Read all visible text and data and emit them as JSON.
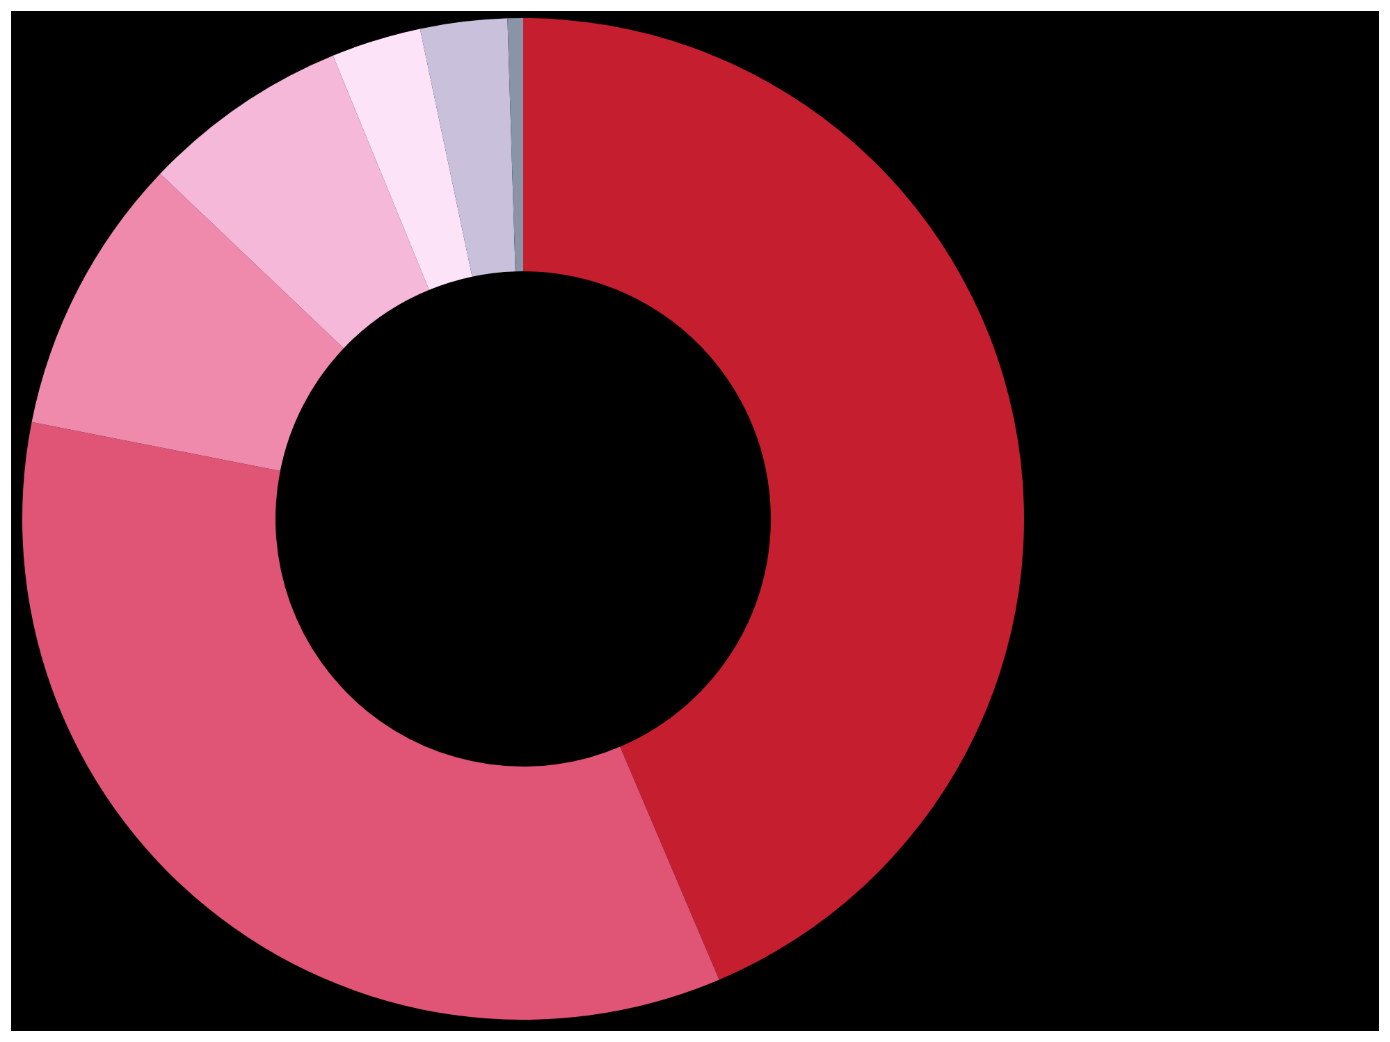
{
  "chart_data": {
    "type": "donut",
    "categories": [
      null,
      null,
      null,
      null,
      null,
      null,
      null
    ],
    "values": [
      43.6,
      34.5,
      9.0,
      6.7,
      2.9,
      2.8,
      0.5
    ],
    "colors": [
      "#c41e2f",
      "#e05575",
      "#ef8aad",
      "#f5b8d9",
      "#fde3f8",
      "#c9c1dc",
      "#8a93a8"
    ],
    "legend": false
  }
}
